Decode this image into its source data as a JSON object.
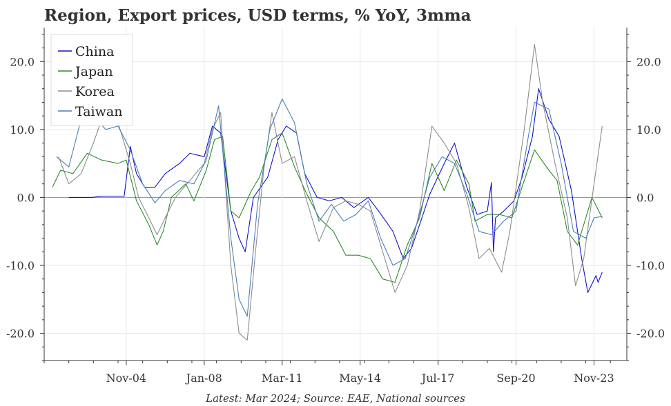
{
  "chart_data": {
    "type": "line",
    "title": "Region, Export prices, USD terms, % YoY, 3mma",
    "footer": "Latest: Mar 2024; Source: EAE, National sources",
    "xlabel": "",
    "ylabel": "",
    "ylim": [
      -24,
      25
    ],
    "y_ticks": [
      20,
      10,
      0,
      -10,
      -20
    ],
    "y_tick_labels": [
      "20.0",
      "10.0",
      "0.0",
      "-10.0",
      "-20.0"
    ],
    "x_range": [
      "2001-07",
      "2025-03"
    ],
    "x_ticks": [
      {
        "date": "2004-11",
        "label": "Nov-04"
      },
      {
        "date": "2008-01",
        "label": "Jan-08"
      },
      {
        "date": "2011-03",
        "label": "Mar-11"
      },
      {
        "date": "2014-05",
        "label": "May-14"
      },
      {
        "date": "2017-07",
        "label": "Jul-17"
      },
      {
        "date": "2020-09",
        "label": "Sep-20"
      },
      {
        "date": "2023-11",
        "label": "Nov-23"
      }
    ],
    "grid": true,
    "legend_position": "top-left",
    "series": [
      {
        "name": "China",
        "color": "#1010cc",
        "points": [
          [
            "2002-07",
            0
          ],
          [
            "2003-06",
            0
          ],
          [
            "2003-12",
            0.2
          ],
          [
            "2004-10",
            0.2
          ],
          [
            "2005-01",
            7.5
          ],
          [
            "2005-04",
            3.5
          ],
          [
            "2005-08",
            1.5
          ],
          [
            "2006-01",
            1.5
          ],
          [
            "2006-06",
            3.5
          ],
          [
            "2007-01",
            5.0
          ],
          [
            "2007-06",
            6.5
          ],
          [
            "2008-01",
            6.0
          ],
          [
            "2008-05",
            10.5
          ],
          [
            "2008-09",
            9.5
          ],
          [
            "2009-02",
            -2.0
          ],
          [
            "2009-06",
            -6.0
          ],
          [
            "2009-09",
            -8.0
          ],
          [
            "2010-01",
            0
          ],
          [
            "2010-08",
            3.0
          ],
          [
            "2011-01",
            8.5
          ],
          [
            "2011-05",
            10.5
          ],
          [
            "2011-10",
            9.5
          ],
          [
            "2012-02",
            3.5
          ],
          [
            "2012-08",
            0
          ],
          [
            "2013-02",
            -0.5
          ],
          [
            "2013-08",
            0
          ],
          [
            "2014-02",
            -1.5
          ],
          [
            "2014-09",
            0
          ],
          [
            "2015-02",
            -2.0
          ],
          [
            "2015-09",
            -5.0
          ],
          [
            "2016-02",
            -9.0
          ],
          [
            "2016-06",
            -7.5
          ],
          [
            "2016-10",
            -4.0
          ],
          [
            "2017-03",
            0.5
          ],
          [
            "2017-10",
            5.0
          ],
          [
            "2018-03",
            8.0
          ],
          [
            "2018-09",
            1.5
          ],
          [
            "2019-02",
            -2.5
          ],
          [
            "2019-07",
            -2.0
          ],
          [
            "2019-09",
            2.2
          ],
          [
            "2019-10",
            -8.0
          ],
          [
            "2019-11",
            -3.0
          ],
          [
            "2020-03",
            -2.0
          ],
          [
            "2020-08",
            -0.5
          ],
          [
            "2020-12",
            3.0
          ],
          [
            "2021-05",
            9.0
          ],
          [
            "2021-08",
            16.0
          ],
          [
            "2022-01",
            11.5
          ],
          [
            "2022-06",
            9.0
          ],
          [
            "2022-12",
            1.0
          ],
          [
            "2023-05",
            -9.0
          ],
          [
            "2023-08",
            -14.0
          ],
          [
            "2023-12",
            -11.5
          ],
          [
            "2024-01",
            -12.5
          ],
          [
            "2024-03",
            -11.0
          ]
        ]
      },
      {
        "name": "Japan",
        "color": "#2a8a2a",
        "points": [
          [
            "2001-11",
            1.5
          ],
          [
            "2002-03",
            4.0
          ],
          [
            "2002-09",
            3.5
          ],
          [
            "2003-04",
            6.5
          ],
          [
            "2003-11",
            5.5
          ],
          [
            "2004-07",
            5.0
          ],
          [
            "2004-11",
            5.5
          ],
          [
            "2005-04",
            -0.5
          ],
          [
            "2005-10",
            -4.0
          ],
          [
            "2006-02",
            -7.0
          ],
          [
            "2006-05",
            -5.0
          ],
          [
            "2006-09",
            0
          ],
          [
            "2007-04",
            2.0
          ],
          [
            "2007-08",
            -0.5
          ],
          [
            "2008-02",
            4.0
          ],
          [
            "2008-06",
            8.5
          ],
          [
            "2008-10",
            9.0
          ],
          [
            "2009-02",
            -2.0
          ],
          [
            "2009-06",
            -3.0
          ],
          [
            "2009-12",
            1.0
          ],
          [
            "2010-04",
            3.0
          ],
          [
            "2010-10",
            8.5
          ],
          [
            "2011-03",
            9.5
          ],
          [
            "2011-09",
            4.5
          ],
          [
            "2012-03",
            0.5
          ],
          [
            "2012-09",
            -3.0
          ],
          [
            "2013-04",
            -5.0
          ],
          [
            "2013-10",
            -8.5
          ],
          [
            "2014-04",
            -8.5
          ],
          [
            "2014-10",
            -9.0
          ],
          [
            "2015-04",
            -12.0
          ],
          [
            "2015-10",
            -12.5
          ],
          [
            "2016-04",
            -7.0
          ],
          [
            "2016-10",
            -3.0
          ],
          [
            "2017-04",
            5.0
          ],
          [
            "2017-10",
            1.0
          ],
          [
            "2018-04",
            5.5
          ],
          [
            "2018-10",
            2.0
          ],
          [
            "2019-01",
            -3.5
          ],
          [
            "2019-07",
            -2.5
          ],
          [
            "2020-01",
            -2.5
          ],
          [
            "2020-07",
            -3.0
          ],
          [
            "2021-01",
            2.5
          ],
          [
            "2021-06",
            7.0
          ],
          [
            "2022-01",
            4.0
          ],
          [
            "2022-05",
            2.5
          ],
          [
            "2022-10",
            -5.0
          ],
          [
            "2023-03",
            -7.0
          ],
          [
            "2023-10",
            0
          ],
          [
            "2024-03",
            -3.0
          ]
        ]
      },
      {
        "name": "Korea",
        "color": "#8c8c8c",
        "points": [
          [
            "2002-02",
            6.0
          ],
          [
            "2002-07",
            2.0
          ],
          [
            "2003-01",
            3.5
          ],
          [
            "2003-07",
            8.0
          ],
          [
            "2004-02",
            14.0
          ],
          [
            "2004-07",
            11.0
          ],
          [
            "2005-01",
            5.0
          ],
          [
            "2005-05",
            0
          ],
          [
            "2005-10",
            -3.0
          ],
          [
            "2006-02",
            -5.5
          ],
          [
            "2006-06",
            -3.0
          ],
          [
            "2006-11",
            0
          ],
          [
            "2007-06",
            2.5
          ],
          [
            "2008-01",
            5.0
          ],
          [
            "2008-05",
            10.0
          ],
          [
            "2008-09",
            12.5
          ],
          [
            "2009-02",
            -10.0
          ],
          [
            "2009-06",
            -20.0
          ],
          [
            "2009-10",
            -21.0
          ],
          [
            "2010-02",
            -8.0
          ],
          [
            "2010-06",
            4.0
          ],
          [
            "2010-10",
            12.5
          ],
          [
            "2011-03",
            5.0
          ],
          [
            "2011-09",
            6.0
          ],
          [
            "2012-03",
            -0.5
          ],
          [
            "2012-09",
            -6.5
          ],
          [
            "2013-04",
            -1.5
          ],
          [
            "2013-10",
            -0.5
          ],
          [
            "2014-04",
            -1.0
          ],
          [
            "2014-10",
            -2.0
          ],
          [
            "2015-04",
            -8.0
          ],
          [
            "2015-10",
            -14.0
          ],
          [
            "2016-04",
            -10.0
          ],
          [
            "2016-10",
            -2.0
          ],
          [
            "2017-04",
            10.5
          ],
          [
            "2017-10",
            8.0
          ],
          [
            "2018-04",
            5.0
          ],
          [
            "2018-10",
            -1.5
          ],
          [
            "2019-03",
            -9.0
          ],
          [
            "2019-08",
            -7.5
          ],
          [
            "2020-02",
            -11.0
          ],
          [
            "2020-06",
            -5.0
          ],
          [
            "2021-01",
            10.0
          ],
          [
            "2021-06",
            22.5
          ],
          [
            "2021-10",
            14.0
          ],
          [
            "2022-04",
            5.0
          ],
          [
            "2022-10",
            -3.0
          ],
          [
            "2023-02",
            -13.0
          ],
          [
            "2023-06",
            -9.0
          ],
          [
            "2023-11",
            2.0
          ],
          [
            "2024-03",
            10.5
          ]
        ]
      },
      {
        "name": "Taiwan",
        "color": "#4a7fb5",
        "points": [
          [
            "2002-01",
            6.0
          ],
          [
            "2002-07",
            4.5
          ],
          [
            "2003-01",
            11.5
          ],
          [
            "2003-07",
            12.0
          ],
          [
            "2004-01",
            10.0
          ],
          [
            "2004-07",
            10.5
          ],
          [
            "2005-01",
            7.0
          ],
          [
            "2005-07",
            2.0
          ],
          [
            "2006-01",
            -0.8
          ],
          [
            "2006-06",
            1.0
          ],
          [
            "2007-01",
            2.5
          ],
          [
            "2007-08",
            2.0
          ],
          [
            "2008-02",
            5.5
          ],
          [
            "2008-08",
            13.5
          ],
          [
            "2009-02",
            -6.0
          ],
          [
            "2009-06",
            -15.0
          ],
          [
            "2009-10",
            -17.5
          ],
          [
            "2010-03",
            -1.0
          ],
          [
            "2010-09",
            10.0
          ],
          [
            "2011-03",
            14.5
          ],
          [
            "2011-09",
            11.0
          ],
          [
            "2012-03",
            2.0
          ],
          [
            "2012-09",
            -3.5
          ],
          [
            "2013-03",
            -1.0
          ],
          [
            "2013-09",
            -3.5
          ],
          [
            "2014-03",
            -2.5
          ],
          [
            "2014-09",
            -0.5
          ],
          [
            "2015-03",
            -6.0
          ],
          [
            "2015-09",
            -10.0
          ],
          [
            "2016-03",
            -9.0
          ],
          [
            "2016-09",
            -3.5
          ],
          [
            "2017-03",
            3.0
          ],
          [
            "2017-09",
            6.0
          ],
          [
            "2018-03",
            5.0
          ],
          [
            "2018-09",
            0.5
          ],
          [
            "2019-03",
            -5.0
          ],
          [
            "2019-09",
            -5.5
          ],
          [
            "2020-03",
            -3.5
          ],
          [
            "2020-09",
            -2.0
          ],
          [
            "2021-03",
            9.0
          ],
          [
            "2021-06",
            14.0
          ],
          [
            "2022-01",
            13.0
          ],
          [
            "2022-07",
            5.0
          ],
          [
            "2023-01",
            -5.0
          ],
          [
            "2023-07",
            -6.0
          ],
          [
            "2023-11",
            -3.0
          ],
          [
            "2024-03",
            -2.8
          ]
        ]
      }
    ]
  }
}
